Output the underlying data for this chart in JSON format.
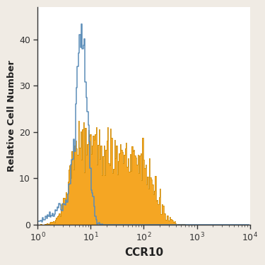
{
  "title": "",
  "xlabel": "CCR10",
  "ylabel": "Relative Cell Number",
  "xlim_log": [
    1,
    10000
  ],
  "ylim": [
    0,
    47
  ],
  "yticks": [
    0,
    10,
    20,
    30,
    40
  ],
  "plot_bg_color": "#ffffff",
  "fig_bg_color": "#f0ebe4",
  "blue_color": "#5b8db8",
  "orange_color": "#f5a623",
  "orange_edge_color": "#cc8800",
  "blue_edge_color": "#3a6a99"
}
